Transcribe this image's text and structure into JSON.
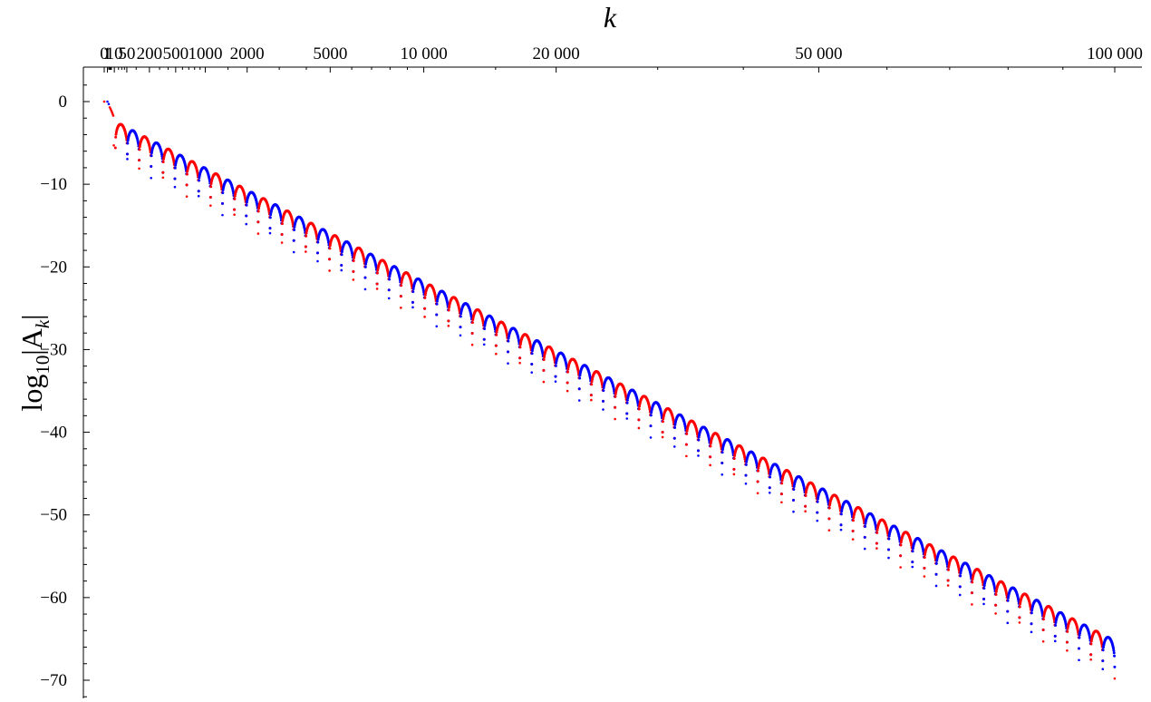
{
  "chart_data": {
    "type": "scatter",
    "title": "",
    "xlabel": "k",
    "ylabel_main": "log",
    "ylabel_sub": "10",
    "ylabel_rest": "|A",
    "ylabel_sub2": "k",
    "ylabel_end": "|",
    "x_scale": "sqrt",
    "x_range": [
      0,
      100000
    ],
    "ylim": [
      -72,
      4
    ],
    "x_ticks": [
      {
        "value": 0,
        "label": "0"
      },
      {
        "value": 1,
        "label": "1"
      },
      {
        "value": 10,
        "label": "10"
      },
      {
        "value": 50,
        "label": "50"
      },
      {
        "value": 200,
        "label": "200"
      },
      {
        "value": 500,
        "label": "500"
      },
      {
        "value": 1000,
        "label": "1000"
      },
      {
        "value": 2000,
        "label": "2000"
      },
      {
        "value": 5000,
        "label": "5000"
      },
      {
        "value": 10000,
        "label": "10 000"
      },
      {
        "value": 20000,
        "label": "20 000"
      },
      {
        "value": 50000,
        "label": "50 000"
      },
      {
        "value": 100000,
        "label": "100 000"
      }
    ],
    "y_ticks": [
      {
        "value": 0,
        "label": "0"
      },
      {
        "value": -10,
        "label": "−10"
      },
      {
        "value": -20,
        "label": "−20"
      },
      {
        "value": -30,
        "label": "−30"
      },
      {
        "value": -40,
        "label": "−40"
      },
      {
        "value": -50,
        "label": "−50"
      },
      {
        "value": -60,
        "label": "−60"
      },
      {
        "value": -70,
        "label": "−70"
      }
    ],
    "grid": false,
    "legend": "none",
    "series": [
      {
        "color": "#ff0000",
        "points": [
          [
            0,
            0
          ],
          [
            9,
            -5.3
          ],
          [
            3,
            -0.7
          ],
          [
            4,
            -0.9
          ],
          [
            5,
            -1.1
          ],
          [
            6,
            -1.3
          ],
          [
            7,
            -1.5
          ],
          [
            8,
            -1.7
          ]
        ]
      },
      {
        "color": "#0000ff",
        "points": [
          [
            1,
            0
          ],
          [
            2,
            -0.3
          ]
        ]
      }
    ],
    "envelope": {
      "description": "oscillating arches alternating red/blue between adjacent zeros",
      "sqrt_k_start": 3.5,
      "sqrt_k_end": 316.2,
      "y_at_start": -2.2,
      "y_at_end": -65.0,
      "arch_count": 84,
      "dip_depth": 3.2,
      "colors": [
        "#ff0000",
        "#0000ff"
      ]
    }
  }
}
